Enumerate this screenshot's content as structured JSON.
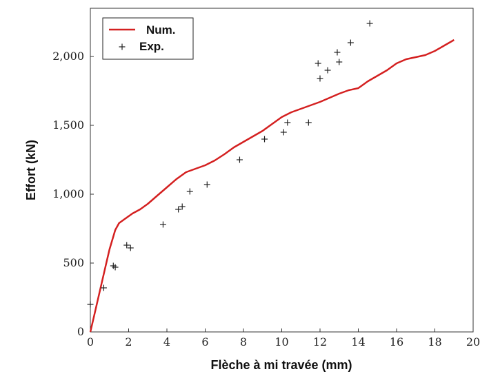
{
  "chart_data": {
    "type": "line",
    "title": "",
    "xlabel": "Flèche à mi travée (mm)",
    "ylabel": "Effort (kN)",
    "xlim": [
      0,
      20
    ],
    "ylim": [
      0,
      2350
    ],
    "x_ticks": [
      0,
      2,
      4,
      6,
      8,
      10,
      12,
      14,
      16,
      18,
      20
    ],
    "y_ticks": [
      0,
      500,
      1000,
      1500,
      2000
    ],
    "y_tick_labels": [
      "0",
      "500",
      "1,000",
      "1,500",
      "2,000"
    ],
    "grid": false,
    "legend_position": "top-left",
    "series": [
      {
        "name": "Num.",
        "kind": "line",
        "color": "#d42020",
        "points": [
          [
            0,
            0
          ],
          [
            0.2,
            120
          ],
          [
            0.5,
            300
          ],
          [
            0.8,
            480
          ],
          [
            1.0,
            600
          ],
          [
            1.3,
            740
          ],
          [
            1.5,
            790
          ],
          [
            1.8,
            820
          ],
          [
            2.2,
            860
          ],
          [
            2.6,
            890
          ],
          [
            3.0,
            930
          ],
          [
            3.5,
            990
          ],
          [
            4.0,
            1050
          ],
          [
            4.5,
            1110
          ],
          [
            5.0,
            1160
          ],
          [
            5.5,
            1185
          ],
          [
            6.0,
            1210
          ],
          [
            6.5,
            1245
          ],
          [
            7.0,
            1290
          ],
          [
            7.5,
            1340
          ],
          [
            8.0,
            1380
          ],
          [
            8.5,
            1420
          ],
          [
            9.0,
            1460
          ],
          [
            9.5,
            1510
          ],
          [
            10.0,
            1560
          ],
          [
            10.5,
            1595
          ],
          [
            11.0,
            1620
          ],
          [
            11.5,
            1645
          ],
          [
            12.0,
            1670
          ],
          [
            12.5,
            1700
          ],
          [
            13.0,
            1730
          ],
          [
            13.5,
            1755
          ],
          [
            14.0,
            1770
          ],
          [
            14.5,
            1820
          ],
          [
            15.0,
            1860
          ],
          [
            15.5,
            1900
          ],
          [
            16.0,
            1950
          ],
          [
            16.5,
            1980
          ],
          [
            17.0,
            1995
          ],
          [
            17.5,
            2010
          ],
          [
            18.0,
            2040
          ],
          [
            18.5,
            2080
          ],
          [
            19.0,
            2120
          ]
        ]
      },
      {
        "name": "Exp.",
        "kind": "scatter",
        "marker": "+",
        "color": "#222222",
        "points": [
          [
            0.0,
            200
          ],
          [
            0.7,
            320
          ],
          [
            1.2,
            480
          ],
          [
            1.3,
            470
          ],
          [
            1.9,
            630
          ],
          [
            2.1,
            610
          ],
          [
            3.8,
            780
          ],
          [
            4.6,
            890
          ],
          [
            4.8,
            910
          ],
          [
            5.2,
            1020
          ],
          [
            6.1,
            1070
          ],
          [
            7.8,
            1250
          ],
          [
            9.1,
            1400
          ],
          [
            10.1,
            1450
          ],
          [
            10.3,
            1520
          ],
          [
            11.4,
            1520
          ],
          [
            11.9,
            1950
          ],
          [
            12.0,
            1840
          ],
          [
            12.4,
            1900
          ],
          [
            12.9,
            2030
          ],
          [
            13.0,
            1960
          ],
          [
            13.6,
            2100
          ],
          [
            14.6,
            2240
          ]
        ]
      }
    ]
  }
}
